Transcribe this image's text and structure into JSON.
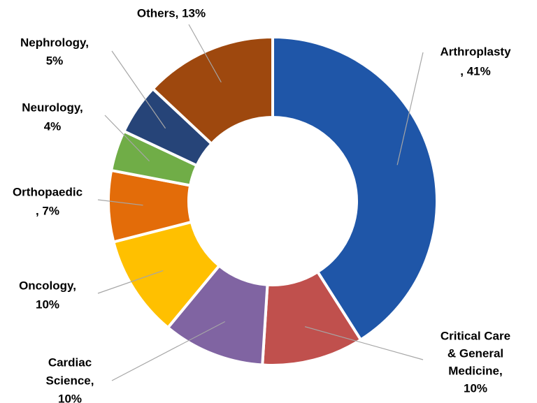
{
  "chart_data": {
    "type": "donut",
    "values": [
      41,
      10,
      10,
      10,
      7,
      4,
      5,
      13
    ],
    "labels": [
      [
        "Arthroplasty",
        ", 41%"
      ],
      [
        "Critical Care",
        "& General",
        "Medicine,",
        "10%"
      ],
      [
        "Cardiac",
        "Science,",
        "10%"
      ],
      [
        "Oncology,",
        "10%"
      ],
      [
        "Orthopaedic",
        ", 7%"
      ],
      [
        "Neurology,",
        "4%"
      ],
      [
        "Nephrology,",
        "5%"
      ],
      [
        "Others, 13%"
      ]
    ],
    "colors": [
      "#1f56a8",
      "#c0504d",
      "#8064a2",
      "#ffc000",
      "#e36c09",
      "#70ad47",
      "#264478",
      "#9e480e"
    ]
  }
}
